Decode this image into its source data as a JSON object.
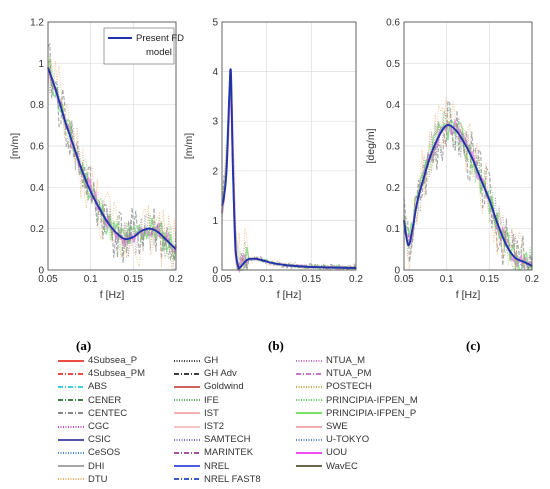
{
  "chart_data": [
    {
      "type": "line",
      "panel": "(a)",
      "xlabel": "f [Hz]",
      "ylabel": "[m/m]",
      "xlim": [
        0.05,
        0.2
      ],
      "ylim": [
        0,
        1.2
      ],
      "xticks": [
        "0.05",
        "0.1",
        "0.15",
        "0.2"
      ],
      "yticks": [
        "0",
        "0.2",
        "0.4",
        "0.6",
        "0.8",
        "1",
        "1.2"
      ],
      "grid": true,
      "legend": "top-right",
      "series": [
        {
          "name": "Present FD model",
          "x": [
            0.05,
            0.06,
            0.07,
            0.08,
            0.09,
            0.1,
            0.11,
            0.12,
            0.13,
            0.14,
            0.15,
            0.16,
            0.17,
            0.18,
            0.19,
            0.2
          ],
          "y": [
            0.98,
            0.86,
            0.72,
            0.6,
            0.48,
            0.38,
            0.3,
            0.23,
            0.18,
            0.15,
            0.16,
            0.19,
            0.2,
            0.18,
            0.14,
            0.1
          ]
        }
      ]
    },
    {
      "type": "line",
      "panel": "(b)",
      "xlabel": "f [Hz]",
      "ylabel": "[m/m]",
      "xlim": [
        0.05,
        0.2
      ],
      "ylim": [
        0,
        5
      ],
      "xticks": [
        "0.05",
        "0.1",
        "0.15",
        "0.2"
      ],
      "yticks": [
        "0",
        "1",
        "2",
        "3",
        "4",
        "5"
      ],
      "grid": true,
      "series": [
        {
          "name": "Present FD model",
          "x": [
            0.05,
            0.052,
            0.055,
            0.058,
            0.06,
            0.062,
            0.065,
            0.068,
            0.07,
            0.075,
            0.08,
            0.09,
            0.1,
            0.12,
            0.15,
            0.2
          ],
          "y": [
            1.3,
            1.45,
            2.0,
            3.4,
            4.0,
            2.2,
            0.5,
            0.08,
            0.05,
            0.15,
            0.22,
            0.22,
            0.17,
            0.1,
            0.06,
            0.04
          ]
        }
      ]
    },
    {
      "type": "line",
      "panel": "(c)",
      "xlabel": "f [Hz]",
      "ylabel": "[deg/m]",
      "xlim": [
        0.05,
        0.2
      ],
      "ylim": [
        0,
        0.6
      ],
      "xticks": [
        "0.05",
        "0.1",
        "0.15",
        "0.2"
      ],
      "yticks": [
        "0",
        "0.1",
        "0.2",
        "0.3",
        "0.4",
        "0.5",
        "0.6"
      ],
      "grid": true,
      "series": [
        {
          "name": "Present FD model",
          "x": [
            0.05,
            0.055,
            0.06,
            0.065,
            0.07,
            0.08,
            0.09,
            0.1,
            0.11,
            0.12,
            0.13,
            0.14,
            0.15,
            0.16,
            0.17,
            0.18,
            0.19,
            0.2
          ],
          "y": [
            0.12,
            0.06,
            0.1,
            0.16,
            0.2,
            0.27,
            0.32,
            0.35,
            0.34,
            0.31,
            0.27,
            0.22,
            0.17,
            0.11,
            0.06,
            0.03,
            0.02,
            0.01
          ]
        }
      ]
    }
  ],
  "panel_labels": [
    "(a)",
    "(b)",
    "(c)"
  ],
  "legend_box": {
    "line1": "Present FD",
    "line2": "model"
  },
  "legend": [
    {
      "name": "4Subsea_P",
      "color": "#e8332a",
      "dash": ""
    },
    {
      "name": "4Subsea_PM",
      "color": "#e8332a",
      "dash": "5,2,1,2"
    },
    {
      "name": "ABS",
      "color": "#29c4e0",
      "dash": "5,2,1,2"
    },
    {
      "name": "CENER",
      "color": "#1a6e2a",
      "dash": "5,2,1,2"
    },
    {
      "name": "CENTEC",
      "color": "#777777",
      "dash": "5,2,1,2"
    },
    {
      "name": "CGC",
      "color": "#cc33cc",
      "dash": "1,1.5"
    },
    {
      "name": "CSIC",
      "color": "#3a3aa8",
      "dash": ""
    },
    {
      "name": "CeSOS",
      "color": "#2a7ad6",
      "dash": "1,1.5"
    },
    {
      "name": "DHI",
      "color": "#999999",
      "dash": ""
    },
    {
      "name": "DTU",
      "color": "#f0a050",
      "dash": "1,1.5"
    },
    {
      "name": "GH",
      "color": "#222222",
      "dash": "1,1.5"
    },
    {
      "name": "GH Adv",
      "color": "#222222",
      "dash": "5,2,1,2"
    },
    {
      "name": "Goldwind",
      "color": "#c84a4a",
      "dash": ""
    },
    {
      "name": "IFE",
      "color": "#3aa03a",
      "dash": "1,1.5"
    },
    {
      "name": "IST",
      "color": "#f2a8a8",
      "dash": ""
    },
    {
      "name": "IST2",
      "color": "#f6bcbc",
      "dash": ""
    },
    {
      "name": "SAMTECH",
      "color": "#6a5acd",
      "dash": "1,1.5"
    },
    {
      "name": "MARINTEK",
      "color": "#9a3a9a",
      "dash": "5,2,1,2"
    },
    {
      "name": "NREL",
      "color": "#3344dd",
      "dash": ""
    },
    {
      "name": "NREL FAST8",
      "color": "#2244bb",
      "dash": "5,2,1,2"
    },
    {
      "name": "NTUA_M",
      "color": "#c060c0",
      "dash": "1,1.5"
    },
    {
      "name": "NTUA_PM",
      "color": "#c060c0",
      "dash": "5,2,1,2"
    },
    {
      "name": "POSTECH",
      "color": "#b0a030",
      "dash": "1,1.5"
    },
    {
      "name": "PRINCIPIA-IFPEN_M",
      "color": "#44cc44",
      "dash": "1,1.5"
    },
    {
      "name": "PRINCIPIA-IFPEN_P",
      "color": "#66dd55",
      "dash": ""
    },
    {
      "name": "SWE",
      "color": "#f0a0a0",
      "dash": ""
    },
    {
      "name": "U-TOKYO",
      "color": "#4477dd",
      "dash": "1,1.5"
    },
    {
      "name": "UOU",
      "color": "#ee33ee",
      "dash": ""
    },
    {
      "name": "WavEC",
      "color": "#5a5030",
      "dash": ""
    }
  ],
  "colors": {
    "model": "#2233aa",
    "axis": "#555555",
    "grid": "#dddddd",
    "band_green": "#6ed36e",
    "band_gray": "#8a8a8a",
    "band_orange": "#f2b27a",
    "band_pink": "#e070e0"
  }
}
